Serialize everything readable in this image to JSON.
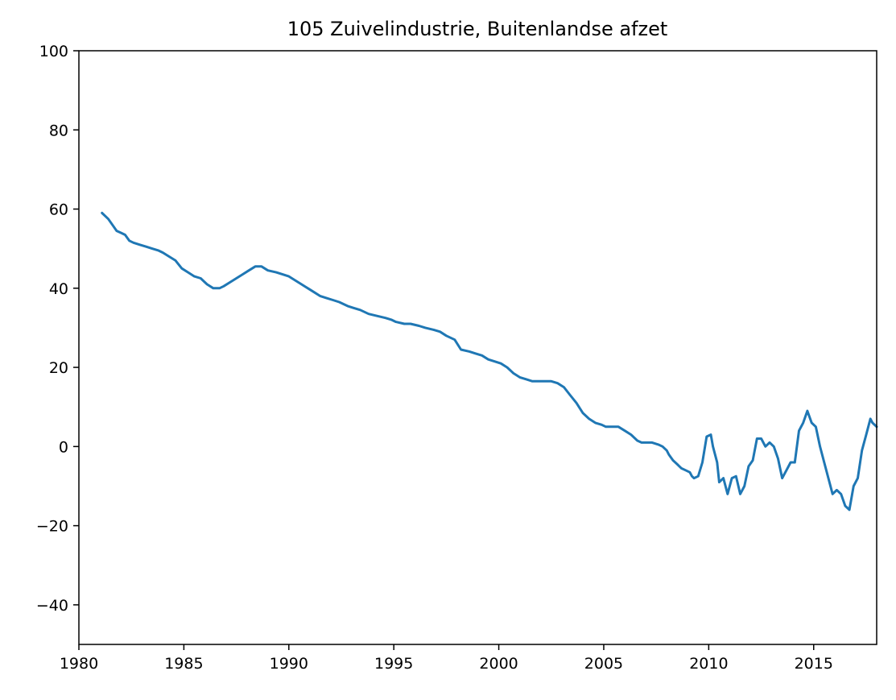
{
  "chart_data": {
    "type": "line",
    "title": "105 Zuivelindustrie, Buitenlandse afzet",
    "xlabel": "",
    "ylabel": "",
    "xlim": [
      1980,
      2018
    ],
    "ylim": [
      -50,
      100
    ],
    "xticks": [
      1980,
      1985,
      1990,
      1995,
      2000,
      2005,
      2010,
      2015
    ],
    "xtick_labels": [
      "1980",
      "1985",
      "1990",
      "1995",
      "2000",
      "2005",
      "2010",
      "2015"
    ],
    "yticks": [
      -40,
      -20,
      0,
      20,
      40,
      60,
      80,
      100
    ],
    "ytick_labels": [
      "−40",
      "−20",
      "0",
      "20",
      "40",
      "60",
      "80",
      "100"
    ],
    "grid": false,
    "legend": "none",
    "color": "#1f77b4",
    "series": [
      {
        "x": [
          1981.1,
          1981.4,
          1981.6,
          1981.8,
          1982.0,
          1982.2,
          1982.4,
          1982.6,
          1982.9,
          1983.2,
          1983.5,
          1983.8,
          1984.0,
          1984.3,
          1984.6,
          1984.9,
          1985.2,
          1985.5,
          1985.8,
          1986.1,
          1986.4,
          1986.7,
          1986.9,
          1987.2,
          1987.5,
          1987.8,
          1988.1,
          1988.4,
          1988.7,
          1989.0,
          1989.4,
          1989.7,
          1990.0,
          1990.3,
          1990.6,
          1990.9,
          1991.2,
          1991.5,
          1991.8,
          1992.1,
          1992.4,
          1992.8,
          1993.1,
          1993.4,
          1993.8,
          1994.2,
          1994.6,
          1994.9,
          1995.1,
          1995.5,
          1995.8,
          1996.2,
          1996.5,
          1996.9,
          1997.2,
          1997.5,
          1997.9,
          1998.2,
          1998.6,
          1998.9,
          1999.2,
          1999.5,
          1999.8,
          2000.1,
          2000.4,
          2000.7,
          2001.0,
          2001.3,
          2001.6,
          2001.9,
          2002.2,
          2002.5,
          2002.8,
          2003.1,
          2003.4,
          2003.7,
          2004.0,
          2004.3,
          2004.6,
          2004.9,
          2005.1,
          2005.4,
          2005.7,
          2006.0,
          2006.3,
          2006.6,
          2006.8,
          2007.0,
          2007.3,
          2007.6,
          2007.8,
          2008.0,
          2008.1,
          2008.3,
          2008.5,
          2008.6,
          2008.7,
          2008.9,
          2009.1,
          2009.2,
          2009.3,
          2009.5,
          2009.7,
          2009.9,
          2010.1,
          2010.2,
          2010.4,
          2010.5,
          2010.7,
          2010.9,
          2011.1,
          2011.3,
          2011.5,
          2011.7,
          2011.9,
          2012.1,
          2012.3,
          2012.5,
          2012.7,
          2012.9,
          2013.1,
          2013.3,
          2013.5,
          2013.7,
          2013.9,
          2014.1,
          2014.3,
          2014.5,
          2014.7,
          2014.9,
          2015.1,
          2015.3,
          2015.5,
          2015.7,
          2015.9,
          2016.1,
          2016.3,
          2016.5,
          2016.7,
          2016.9,
          2017.1,
          2017.3,
          2017.5,
          2017.7,
          2017.8,
          2018.0
        ],
        "values": [
          59,
          57.5,
          56,
          54.5,
          54,
          53.5,
          52,
          51.5,
          51,
          50.5,
          50,
          49.5,
          49,
          48,
          47,
          45,
          44,
          43,
          42.5,
          41,
          40,
          40,
          40.5,
          41.5,
          42.5,
          43.5,
          44.5,
          45.5,
          45.5,
          44.5,
          44,
          43.5,
          43,
          42,
          41,
          40,
          39,
          38,
          37.5,
          37,
          36.5,
          35.5,
          35,
          34.5,
          33.5,
          33,
          32.5,
          32,
          31.5,
          31,
          31,
          30.5,
          30,
          29.5,
          29,
          28,
          27,
          24.5,
          24,
          23.5,
          23,
          22,
          21.5,
          21,
          20,
          18.5,
          17.5,
          17,
          16.5,
          16.5,
          16.5,
          16.5,
          16,
          15,
          13,
          11,
          8.5,
          7,
          6,
          5.5,
          5,
          5,
          5,
          4,
          3,
          1.5,
          1,
          1,
          1,
          0.5,
          0,
          -1,
          -2,
          -3.5,
          -4.5,
          -5,
          -5.5,
          -6,
          -6.5,
          -7.5,
          -8,
          -7.5,
          -4,
          2.5,
          3,
          0,
          -4,
          -9,
          -8,
          -12,
          -8,
          -7.5,
          -12,
          -10,
          -5,
          -3.5,
          2,
          2,
          0,
          1,
          0,
          -3,
          -8,
          -6,
          -4,
          -4,
          4,
          6,
          9,
          6,
          5,
          0,
          -4,
          -8,
          -12,
          -11,
          -12,
          -15,
          -16,
          -10,
          -8,
          -1,
          3,
          7,
          6,
          5
        ]
      }
    ]
  }
}
